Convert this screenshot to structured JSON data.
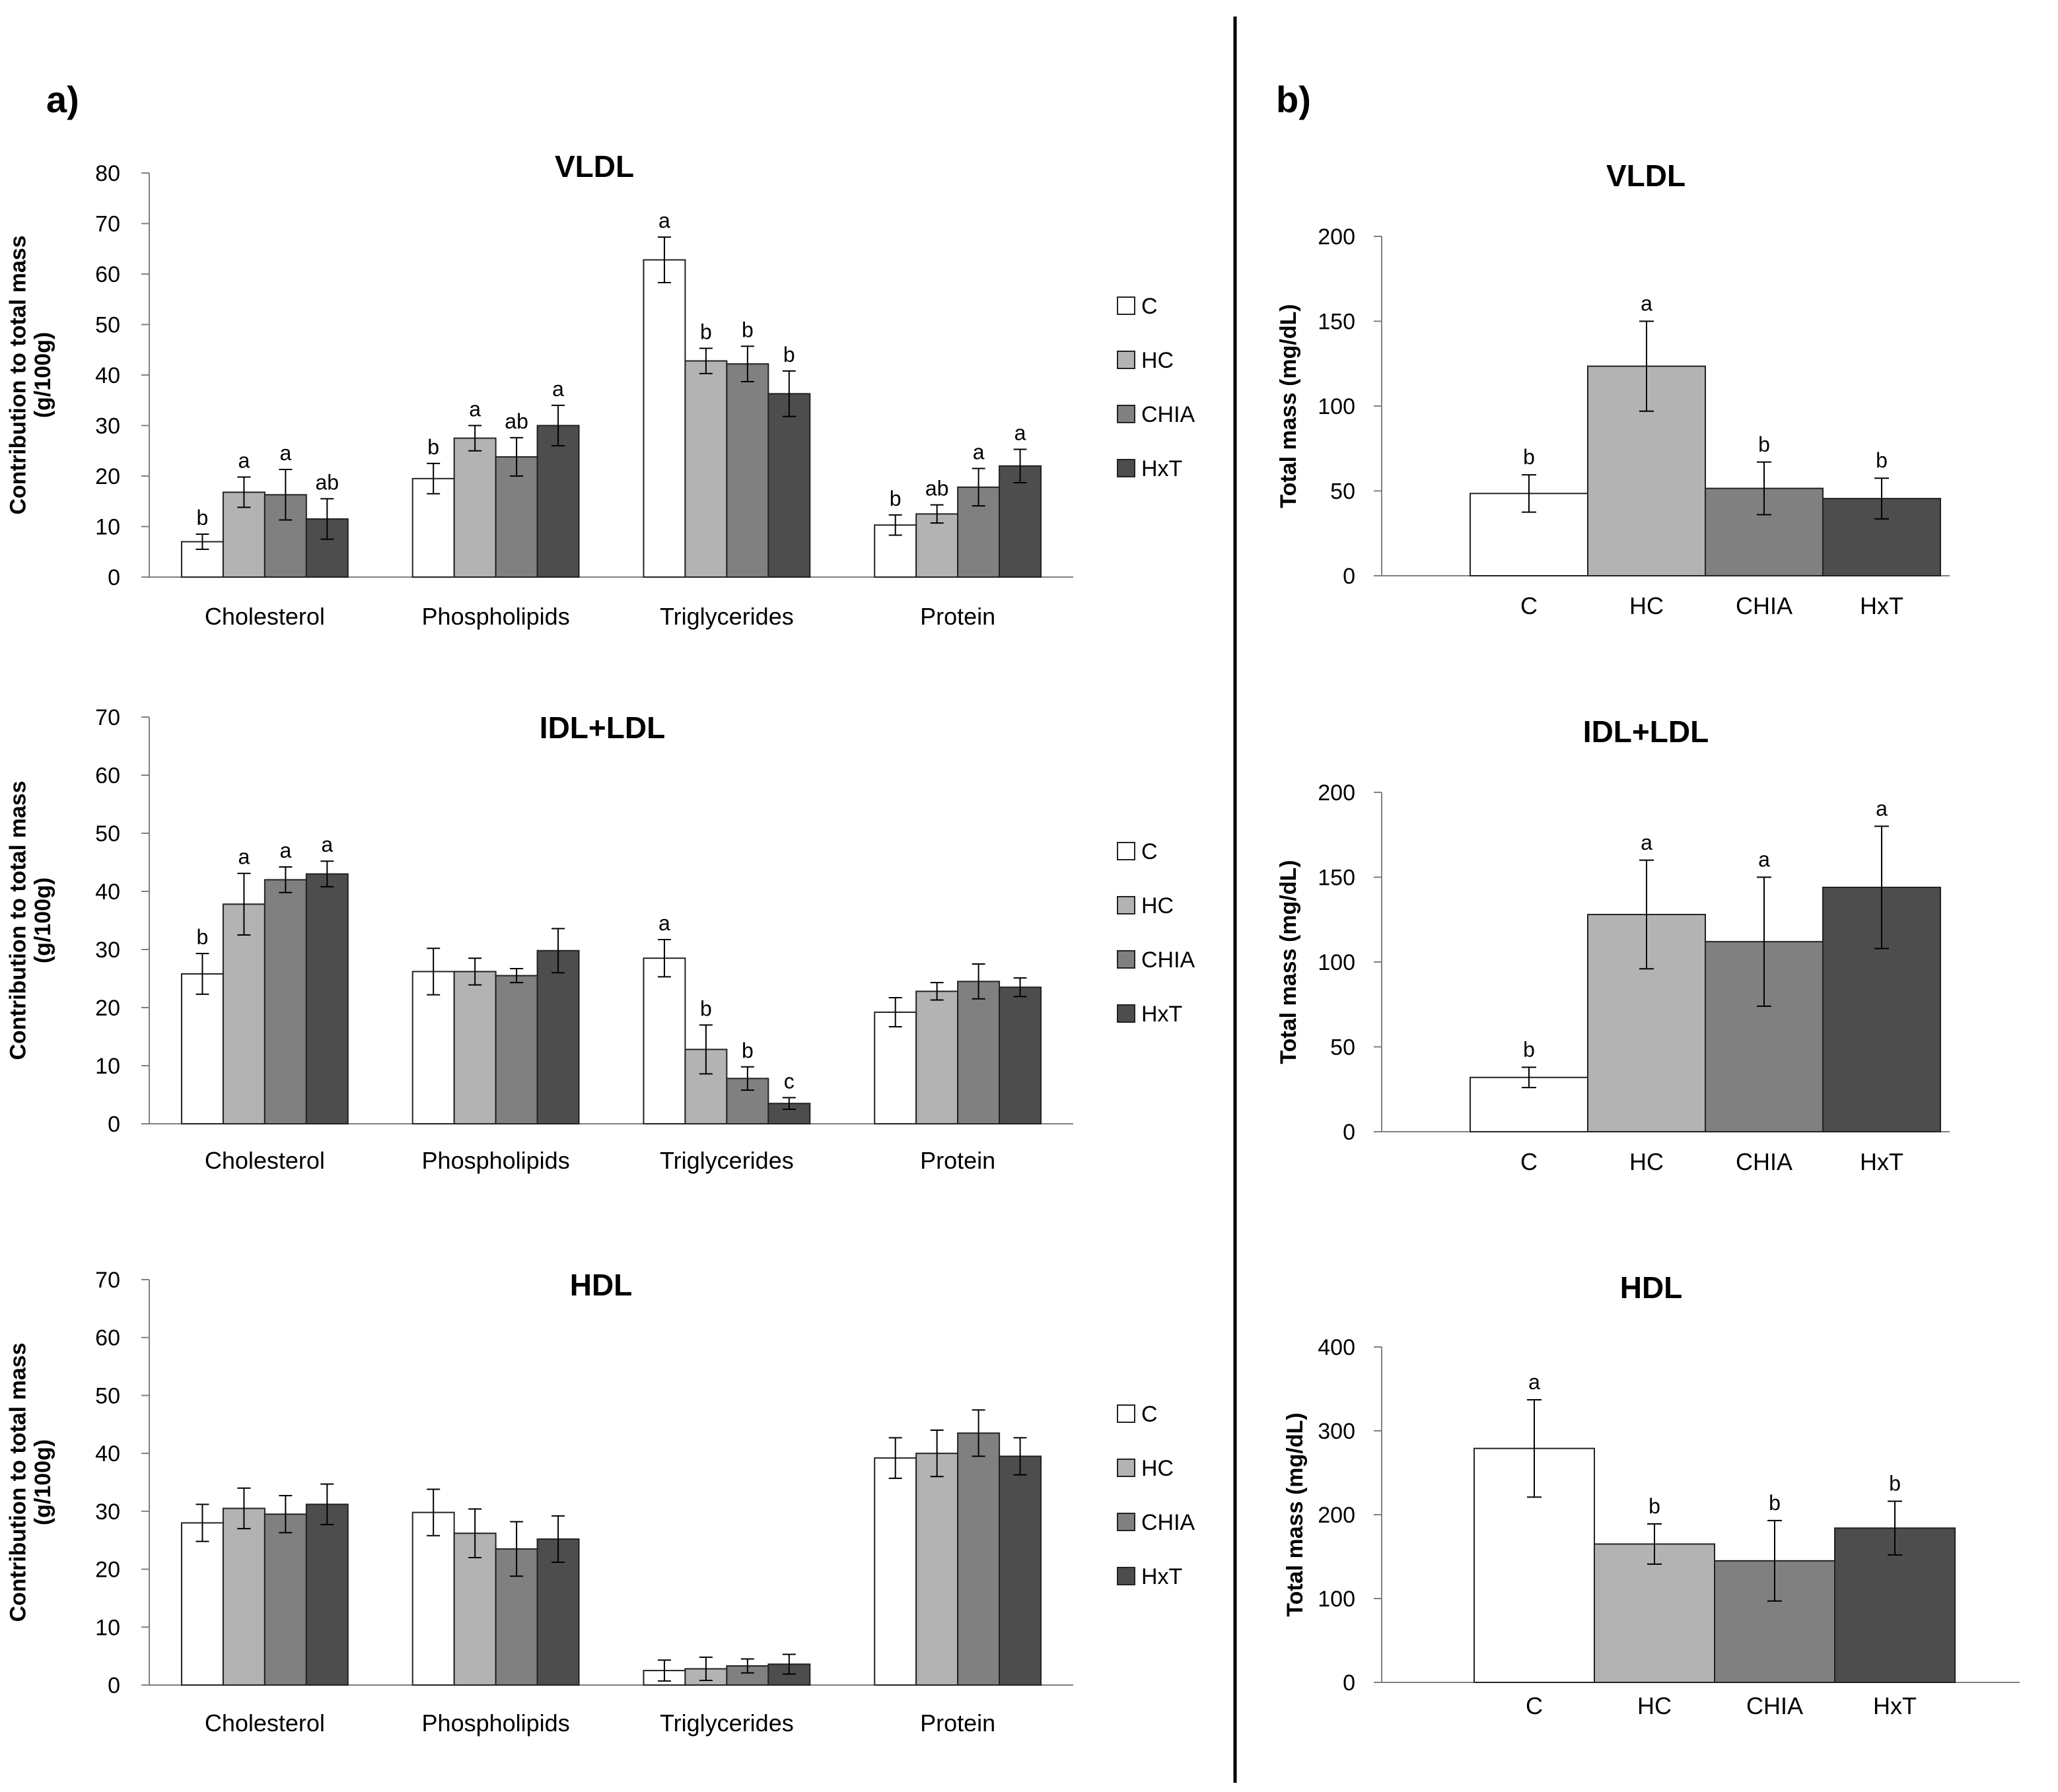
{
  "panels": {
    "a": "a)",
    "b": "b)"
  },
  "colors": {
    "C": "#ffffff",
    "HC": "#b3b3b3",
    "CHIA": "#808080",
    "HxT": "#4d4d4d",
    "axis": "#7f7f7f",
    "divider": "#000000"
  },
  "chart_data": [
    {
      "id": "a-vldl",
      "panel": "a)",
      "type": "bar",
      "title": "VLDL",
      "ylabel_lines": [
        "Contribution to total mass",
        "(g/100g)"
      ],
      "ylim": [
        0,
        80
      ],
      "yticks": [
        0,
        10,
        20,
        30,
        40,
        50,
        60,
        70,
        80
      ],
      "categories": [
        "Cholesterol",
        "Phospholipids",
        "Triglycerides",
        "Protein"
      ],
      "legend": [
        "C",
        "HC",
        "CHIA",
        "HxT"
      ],
      "series": [
        {
          "name": "C",
          "values": [
            7,
            19.5,
            62.8,
            10.3
          ],
          "errors": [
            1.5,
            3,
            4.5,
            2
          ],
          "labels": [
            "b",
            "b",
            "a",
            "b"
          ]
        },
        {
          "name": "HC",
          "values": [
            16.8,
            27.5,
            42.8,
            12.5
          ],
          "errors": [
            3,
            2.5,
            2.5,
            1.8
          ],
          "labels": [
            "a",
            "a",
            "b",
            "ab"
          ]
        },
        {
          "name": "CHIA",
          "values": [
            16.3,
            23.8,
            42.2,
            17.8
          ],
          "errors": [
            5,
            3.8,
            3.5,
            3.7
          ],
          "labels": [
            "a",
            "ab",
            "b",
            "a"
          ]
        },
        {
          "name": "HxT",
          "values": [
            11.5,
            30,
            36.3,
            22
          ],
          "errors": [
            4,
            4,
            4.5,
            3.3
          ],
          "labels": [
            "ab",
            "a",
            "b",
            "a"
          ]
        }
      ]
    },
    {
      "id": "a-idl",
      "panel": "a)",
      "type": "bar",
      "title": "IDL+LDL",
      "ylabel_lines": [
        "Contribution to total mass",
        "(g/100g)"
      ],
      "ylim": [
        0,
        70
      ],
      "yticks": [
        0,
        10,
        20,
        30,
        40,
        50,
        60,
        70
      ],
      "categories": [
        "Cholesterol",
        "Phospholipids",
        "Triglycerides",
        "Protein"
      ],
      "legend": [
        "C",
        "HC",
        "CHIA",
        "HxT"
      ],
      "series": [
        {
          "name": "C",
          "values": [
            25.8,
            26.2,
            28.5,
            19.2
          ],
          "errors": [
            3.5,
            4,
            3.2,
            2.5
          ],
          "labels": [
            "b",
            "",
            "a",
            ""
          ]
        },
        {
          "name": "HC",
          "values": [
            37.8,
            26.2,
            12.8,
            22.8
          ],
          "errors": [
            5.3,
            2.3,
            4.2,
            1.5
          ],
          "labels": [
            "a",
            "",
            "b",
            ""
          ]
        },
        {
          "name": "CHIA",
          "values": [
            42,
            25.5,
            7.8,
            24.5
          ],
          "errors": [
            2.2,
            1.2,
            2,
            3
          ],
          "labels": [
            "a",
            "",
            "b",
            ""
          ]
        },
        {
          "name": "HxT",
          "values": [
            43,
            29.8,
            3.5,
            23.5
          ],
          "errors": [
            2.2,
            3.8,
            1,
            1.6
          ],
          "labels": [
            "a",
            "",
            "c",
            ""
          ]
        }
      ]
    },
    {
      "id": "a-hdl",
      "panel": "a)",
      "type": "bar",
      "title": "HDL",
      "ylabel_lines": [
        "Contribution to total mass",
        "(g/100g)"
      ],
      "ylim": [
        0,
        70
      ],
      "yticks": [
        0,
        10,
        20,
        30,
        40,
        50,
        60,
        70
      ],
      "categories": [
        "Cholesterol",
        "Phospholipids",
        "Triglycerides",
        "Protein"
      ],
      "legend": [
        "C",
        "HC",
        "CHIA",
        "HxT"
      ],
      "series": [
        {
          "name": "C",
          "values": [
            28,
            29.8,
            2.5,
            39.2
          ],
          "errors": [
            3.2,
            4,
            1.8,
            3.5
          ]
        },
        {
          "name": "HC",
          "values": [
            30.5,
            26.2,
            2.8,
            40
          ],
          "errors": [
            3.5,
            4.2,
            2,
            4
          ]
        },
        {
          "name": "CHIA",
          "values": [
            29.5,
            23.5,
            3.3,
            43.5
          ],
          "errors": [
            3.2,
            4.7,
            1.2,
            4
          ]
        },
        {
          "name": "HxT",
          "values": [
            31.2,
            25.2,
            3.6,
            39.5
          ],
          "errors": [
            3.5,
            4,
            1.7,
            3.2
          ]
        }
      ]
    },
    {
      "id": "b-vldl",
      "panel": "b)",
      "type": "bar",
      "title": "VLDL",
      "ylabel_lines": [
        "Total mass (mg/dL)"
      ],
      "ylim": [
        0,
        200
      ],
      "yticks": [
        0,
        50,
        100,
        150,
        200
      ],
      "categories": [
        "C",
        "HC",
        "CHIA",
        "HxT"
      ],
      "values": [
        48.5,
        123.5,
        51.5,
        45.5
      ],
      "errors": [
        11,
        26.5,
        15.5,
        12
      ],
      "labels": [
        "b",
        "a",
        "b",
        "b"
      ]
    },
    {
      "id": "b-idl",
      "panel": "b)",
      "type": "bar",
      "title": "IDL+LDL",
      "ylabel_lines": [
        "Total mass (mg/dL)"
      ],
      "ylim": [
        0,
        200
      ],
      "yticks": [
        0,
        50,
        100,
        150,
        200
      ],
      "categories": [
        "C",
        "HC",
        "CHIA",
        "HxT"
      ],
      "values": [
        32,
        128,
        112,
        144
      ],
      "errors": [
        6,
        32,
        38,
        36
      ],
      "labels": [
        "b",
        "a",
        "a",
        "a"
      ]
    },
    {
      "id": "b-hdl",
      "panel": "b)",
      "type": "bar",
      "title": "HDL",
      "ylabel_lines": [
        "Total mass (mg/dL)"
      ],
      "ylim": [
        0,
        400
      ],
      "yticks": [
        0,
        100,
        200,
        300,
        400
      ],
      "categories": [
        "C",
        "HC",
        "CHIA",
        "HxT"
      ],
      "values": [
        279,
        165,
        145,
        184
      ],
      "errors": [
        58,
        24,
        48,
        32
      ],
      "labels": [
        "a",
        "b",
        "b",
        "b"
      ]
    }
  ]
}
